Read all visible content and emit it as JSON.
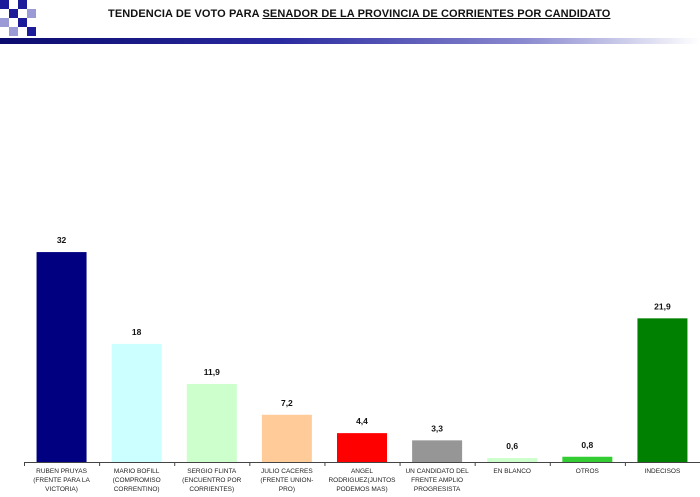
{
  "header": {
    "title_prefix": "TENDENCIA DE VOTO PARA ",
    "title_underlined": "SENADOR DE LA PROVINCIA DE CORRIENTES POR CANDIDATO"
  },
  "colors": {
    "header_bar": "#1a1a85",
    "logo_blue": "#1c1c9a",
    "logo_light": "#9a9ad6"
  },
  "chart_data": {
    "type": "bar",
    "title": "",
    "xlabel": "",
    "ylabel": "",
    "ylim": [
      0,
      35
    ],
    "grid": false,
    "legend": "none",
    "categories": [
      [
        "RUBEN PRUYAS",
        "(FRENTE PARA LA",
        "VICTORIA)"
      ],
      [
        "MARIO BOFILL",
        "(COMPROMISO",
        "CORRENTINO)"
      ],
      [
        "SERGIO FLINTA",
        "(ENCUENTRO POR",
        "CORRIENTES)"
      ],
      [
        "JULIO CACERES",
        "(FRENTE UNION-",
        "PRO)"
      ],
      [
        "ANGEL",
        "RODRIGUEZ(JUNTOS",
        "PODEMOS MAS)"
      ],
      [
        "UN CANDIDATO DEL",
        "FRENTE AMPLIO",
        "PROGRESISTA"
      ],
      [
        "EN BLANCO"
      ],
      [
        "OTROS"
      ],
      [
        "INDECISOS"
      ]
    ],
    "values": [
      32,
      18,
      11.9,
      7.2,
      4.4,
      3.3,
      0.6,
      0.8,
      21.9
    ],
    "value_labels": [
      "32",
      "18",
      "11,9",
      "7,2",
      "4,4",
      "3,3",
      "0,6",
      "0,8",
      "21,9"
    ],
    "bar_colors": [
      "#000080",
      "#ccffff",
      "#ccffcc",
      "#ffcc99",
      "#ff0000",
      "#969696",
      "#ccffcc",
      "#33cc33",
      "#008000"
    ]
  }
}
